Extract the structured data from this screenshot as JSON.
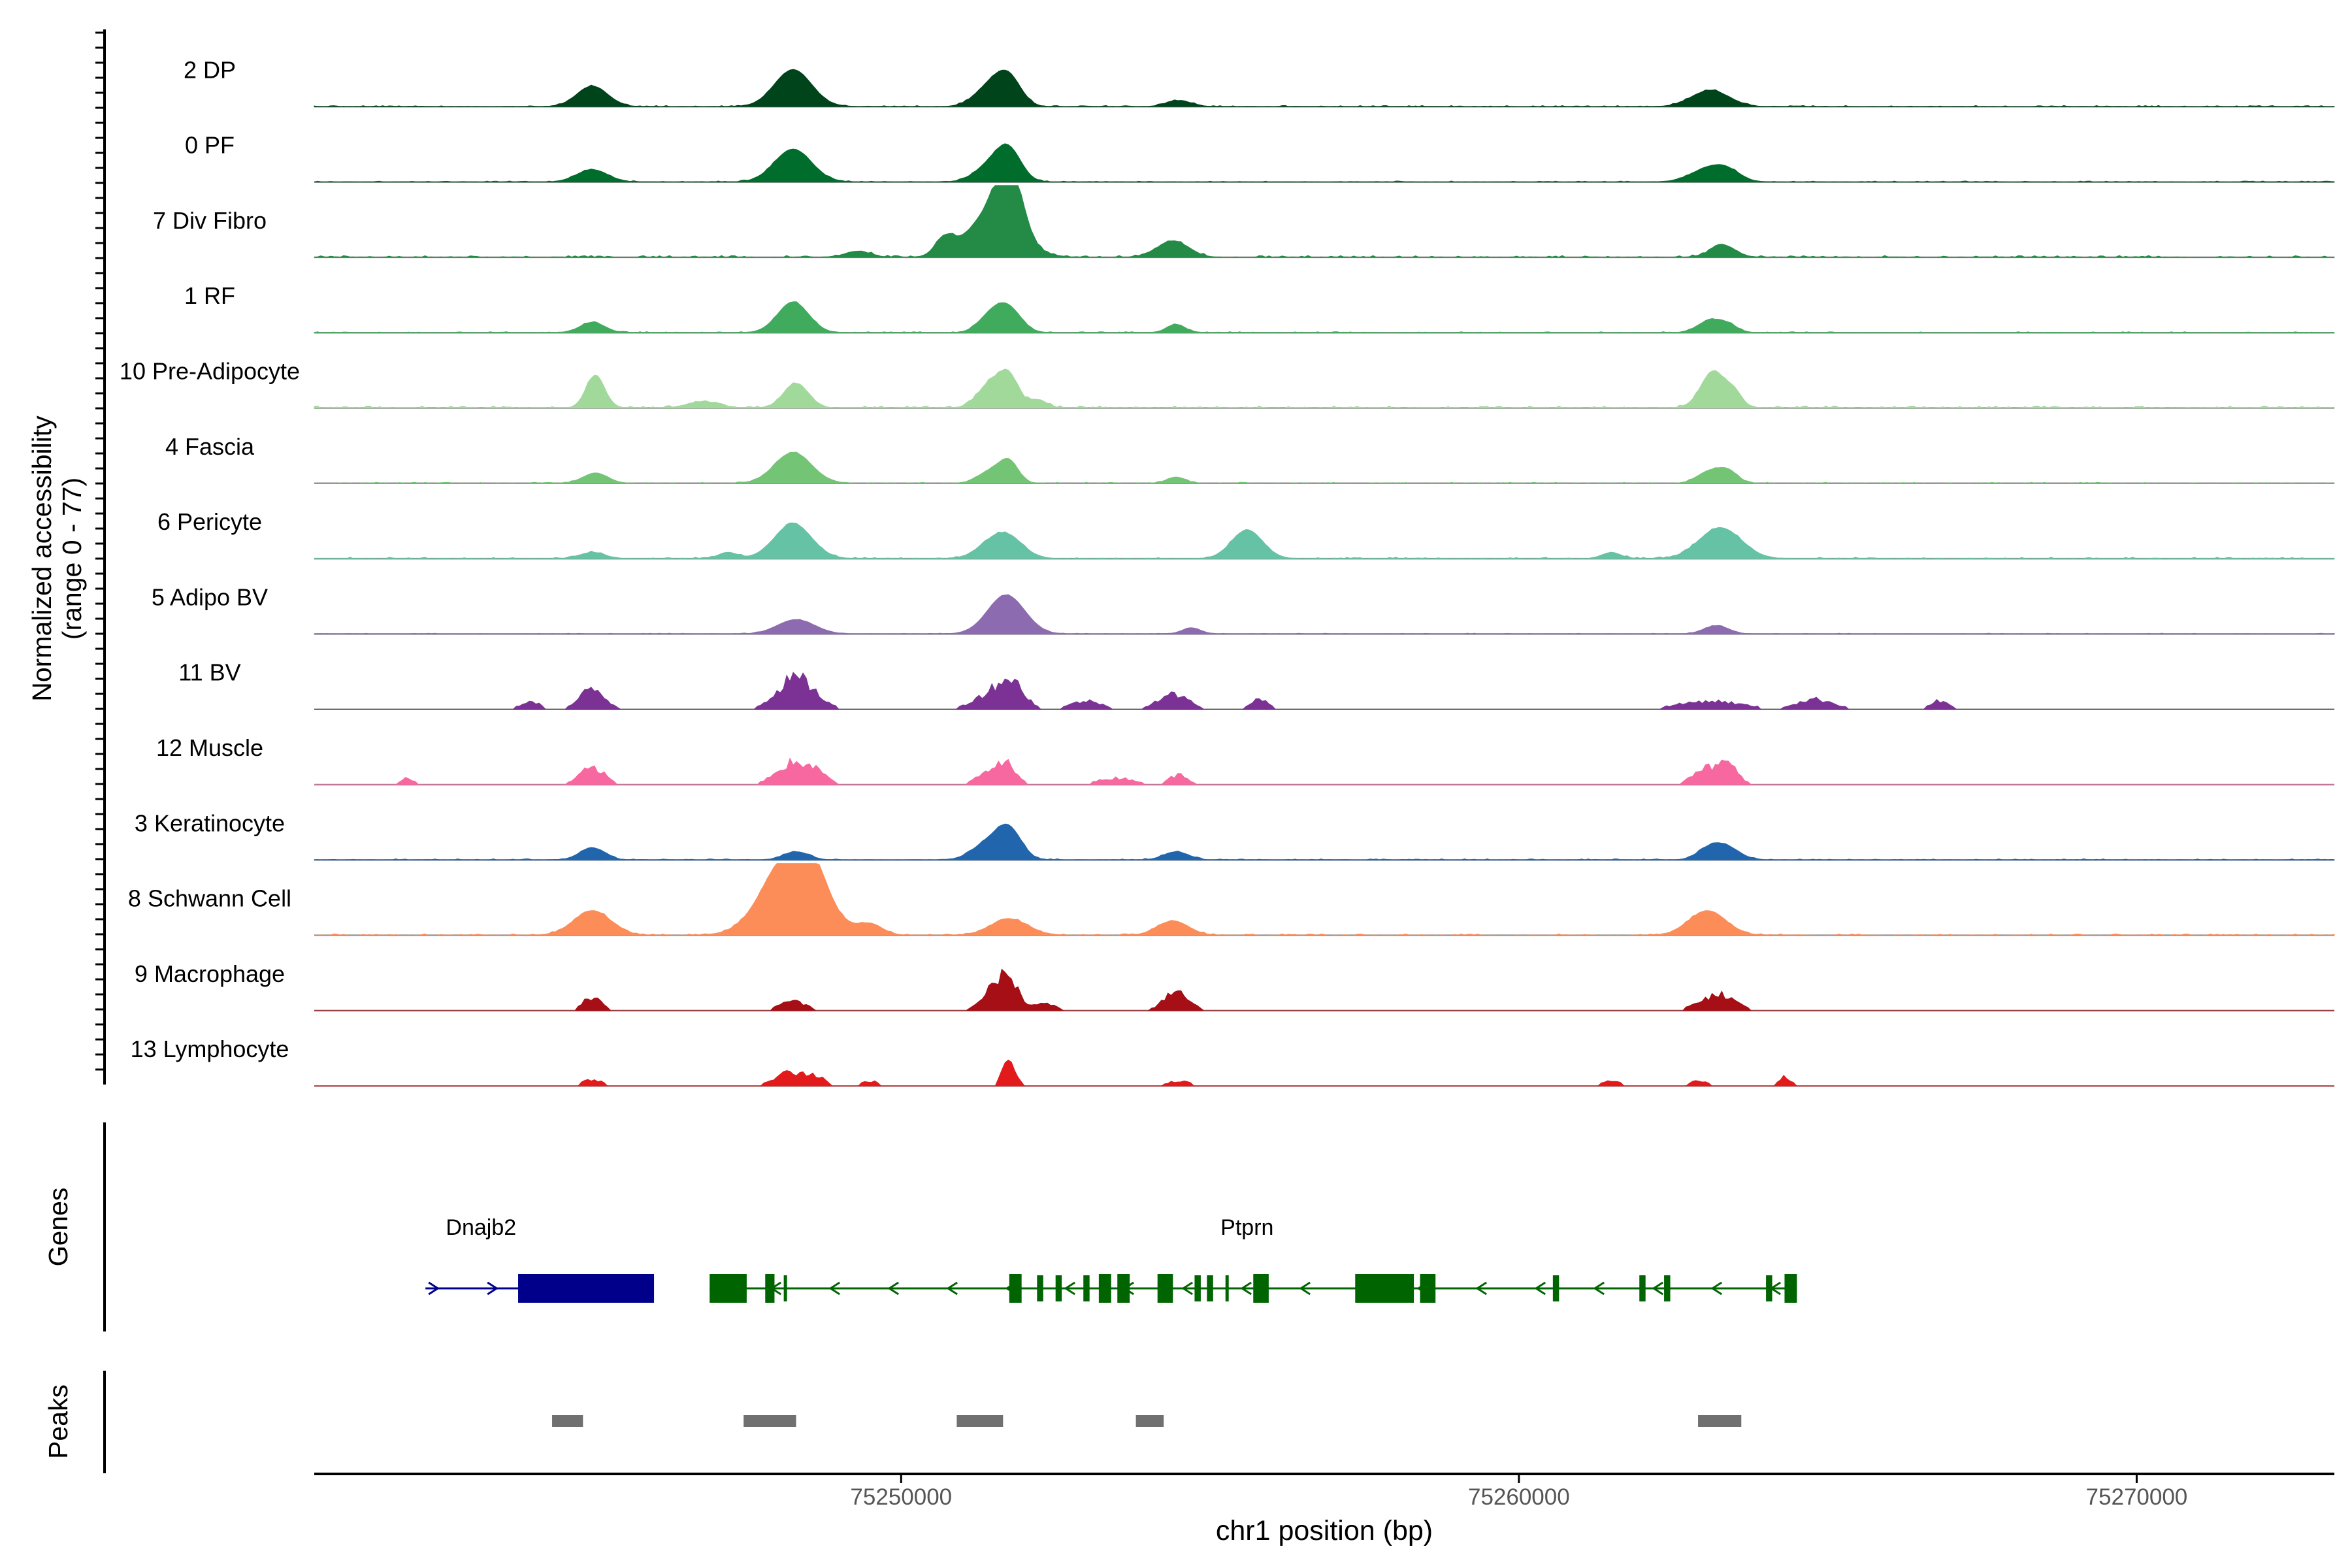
{
  "chart_data": {
    "type": "area",
    "title": "",
    "region": "chr1",
    "xlim": [
      75240500,
      75273200
    ],
    "xticks": [
      75250000,
      75260000,
      75270000
    ],
    "xtick_labels": [
      "75250000",
      "75260000",
      "75270000"
    ],
    "xlabel": "chr1 position (bp)",
    "ylabel_line1": "Normalized accessibility",
    "ylabel_line2": "(range 0 - 77)",
    "yrange": [
      0,
      77
    ],
    "tracks": [
      {
        "name": "2 DP",
        "color": "#00441b",
        "noise": 0.6,
        "peaks": [
          [
            75245000,
            250,
            10
          ],
          [
            75248250,
            300,
            18
          ],
          [
            75251450,
            250,
            10
          ],
          [
            75251750,
            200,
            12
          ],
          [
            75254500,
            200,
            3
          ],
          [
            75263100,
            300,
            8
          ]
        ]
      },
      {
        "name": "0 PF",
        "color": "#006d2c",
        "noise": 0.5,
        "peaks": [
          [
            75245000,
            250,
            6
          ],
          [
            75248250,
            300,
            16
          ],
          [
            75251450,
            250,
            8
          ],
          [
            75251750,
            200,
            14
          ],
          [
            75263100,
            300,
            7
          ],
          [
            75263400,
            200,
            3
          ]
        ]
      },
      {
        "name": "7 Div Fibro",
        "color": "#238b45",
        "noise": 0.9,
        "peaks": [
          [
            75249300,
            200,
            3
          ],
          [
            75250700,
            150,
            8
          ],
          [
            75251500,
            400,
            22
          ],
          [
            75251750,
            200,
            30
          ],
          [
            75254400,
            250,
            8
          ],
          [
            75263300,
            200,
            6
          ]
        ]
      },
      {
        "name": "1 RF",
        "color": "#41ab5d",
        "noise": 0.5,
        "peaks": [
          [
            75245000,
            200,
            5
          ],
          [
            75248250,
            250,
            15
          ],
          [
            75251450,
            200,
            8
          ],
          [
            75251750,
            200,
            11
          ],
          [
            75254450,
            150,
            4
          ],
          [
            75263100,
            200,
            6
          ],
          [
            75263400,
            150,
            3
          ]
        ]
      },
      {
        "name": "10 Pre-Adipocyte",
        "color": "#a1d99b",
        "noise": 1.0,
        "peaks": [
          [
            75245050,
            150,
            16
          ],
          [
            75246800,
            250,
            3
          ],
          [
            75248300,
            200,
            12
          ],
          [
            75251450,
            200,
            12
          ],
          [
            75251750,
            150,
            14
          ],
          [
            75252200,
            150,
            4
          ],
          [
            75263150,
            200,
            18
          ],
          [
            75263500,
            120,
            6
          ]
        ]
      },
      {
        "name": "4 Fascia",
        "color": "#74c476",
        "noise": 0.5,
        "peaks": [
          [
            75245050,
            200,
            5
          ],
          [
            75248250,
            300,
            15
          ],
          [
            75251450,
            200,
            6
          ],
          [
            75251750,
            150,
            10
          ],
          [
            75254450,
            150,
            3
          ],
          [
            75263100,
            200,
            6
          ],
          [
            75263400,
            150,
            5
          ]
        ]
      },
      {
        "name": "6 Pericyte",
        "color": "#66c2a4",
        "noise": 0.7,
        "peaks": [
          [
            75245000,
            200,
            3
          ],
          [
            75247200,
            150,
            3
          ],
          [
            75248250,
            300,
            17
          ],
          [
            75251450,
            250,
            6
          ],
          [
            75251750,
            250,
            9
          ],
          [
            75255600,
            250,
            14
          ],
          [
            75261500,
            150,
            3
          ],
          [
            75263100,
            300,
            8
          ],
          [
            75263400,
            300,
            9
          ]
        ]
      },
      {
        "name": "5 Adipo BV",
        "color": "#8c6bb1",
        "noise": 0.4,
        "peaks": [
          [
            75248300,
            300,
            7
          ],
          [
            75251700,
            300,
            19
          ],
          [
            75254700,
            150,
            3
          ],
          [
            75263200,
            200,
            4
          ]
        ]
      },
      {
        "name": "11 BV",
        "color": "#7b3294",
        "noise": 0.3,
        "clustered": true,
        "peaks": [
          [
            75244000,
            150,
            5
          ],
          [
            75245000,
            200,
            12
          ],
          [
            75248300,
            300,
            19
          ],
          [
            75251500,
            300,
            10
          ],
          [
            75251800,
            200,
            12
          ],
          [
            75253000,
            250,
            5
          ],
          [
            75254400,
            250,
            9
          ],
          [
            75255800,
            150,
            6
          ],
          [
            75263100,
            500,
            5
          ],
          [
            75264800,
            300,
            6
          ],
          [
            75266800,
            150,
            5
          ]
        ]
      },
      {
        "name": "12 Muscle",
        "color": "#f768a1",
        "noise": 0.3,
        "clustered": true,
        "peaks": [
          [
            75242000,
            100,
            4
          ],
          [
            75245000,
            200,
            10
          ],
          [
            75248200,
            250,
            12
          ],
          [
            75248600,
            200,
            7
          ],
          [
            75251450,
            200,
            8
          ],
          [
            75251750,
            150,
            10
          ],
          [
            75253500,
            300,
            4
          ],
          [
            75254500,
            150,
            6
          ],
          [
            75263000,
            200,
            10
          ],
          [
            75263400,
            150,
            12
          ]
        ]
      },
      {
        "name": "3 Keratinocyte",
        "color": "#2166ac",
        "noise": 0.6,
        "peaks": [
          [
            75245000,
            200,
            6
          ],
          [
            75248300,
            200,
            4
          ],
          [
            75251400,
            250,
            8
          ],
          [
            75251750,
            200,
            14
          ],
          [
            75254450,
            200,
            4
          ],
          [
            75263100,
            200,
            6
          ],
          [
            75263400,
            200,
            5
          ]
        ]
      },
      {
        "name": "8 Schwann Cell",
        "color": "#fc8d59",
        "noise": 0.7,
        "peaks": [
          [
            75245000,
            300,
            12
          ],
          [
            75248250,
            450,
            42
          ],
          [
            75248600,
            200,
            8
          ],
          [
            75249500,
            200,
            5
          ],
          [
            75251750,
            300,
            8
          ],
          [
            75254400,
            250,
            7
          ],
          [
            75263050,
            300,
            12
          ]
        ]
      },
      {
        "name": "9 Macrophage",
        "color": "#a50f15",
        "noise": 0.3,
        "clustered": true,
        "peaks": [
          [
            75245000,
            150,
            8
          ],
          [
            75248250,
            200,
            6
          ],
          [
            75251500,
            200,
            12
          ],
          [
            75251750,
            150,
            16
          ],
          [
            75252300,
            200,
            4
          ],
          [
            75254450,
            200,
            11
          ],
          [
            75263100,
            250,
            7
          ],
          [
            75263400,
            200,
            5
          ]
        ]
      },
      {
        "name": "13 Lymphocyte",
        "color": "#e31a1c",
        "noise": 0.0,
        "clustered": true,
        "peaks": [
          [
            75245000,
            150,
            4
          ],
          [
            75248200,
            250,
            8
          ],
          [
            75248600,
            150,
            5
          ],
          [
            75249500,
            150,
            3
          ],
          [
            75251750,
            100,
            18
          ],
          [
            75254500,
            200,
            3
          ],
          [
            75261500,
            150,
            3
          ],
          [
            75262900,
            150,
            3
          ],
          [
            75264300,
            100,
            6
          ]
        ]
      }
    ],
    "genes_label": "Genes",
    "genes": [
      {
        "name": "Dnajb2",
        "strand": "+",
        "color": "#00008b",
        "start": 75242300,
        "end": 75245850,
        "exons": [
          [
            75243800,
            75246000
          ]
        ]
      },
      {
        "name": "Ptprn",
        "strand": "-",
        "color": "#006400",
        "start": 75246900,
        "end": 75264500,
        "exons": [
          [
            75246900,
            75247500
          ],
          [
            75247800,
            75247950
          ],
          [
            75248100,
            75248150
          ],
          [
            75251750,
            75251950
          ],
          [
            75252200,
            75252300
          ],
          [
            75252500,
            75252600
          ],
          [
            75252950,
            75253050
          ],
          [
            75253200,
            75253400
          ],
          [
            75253500,
            75253700
          ],
          [
            75254150,
            75254400
          ],
          [
            75254750,
            75254850
          ],
          [
            75254950,
            75255050
          ],
          [
            75255250,
            75255300
          ],
          [
            75255700,
            75255950
          ],
          [
            75257350,
            75258300
          ],
          [
            75258400,
            75258650
          ],
          [
            75260550,
            75260650
          ],
          [
            75261950,
            75262050
          ],
          [
            75262350,
            75262450
          ],
          [
            75264000,
            75264100
          ],
          [
            75264300,
            75264500
          ]
        ]
      }
    ],
    "peaks_label": "Peaks",
    "peak_regions": [
      [
        75244350,
        75244850
      ],
      [
        75247450,
        75248300
      ],
      [
        75250900,
        75251650
      ],
      [
        75253800,
        75254250
      ],
      [
        75262900,
        75263600
      ]
    ]
  }
}
